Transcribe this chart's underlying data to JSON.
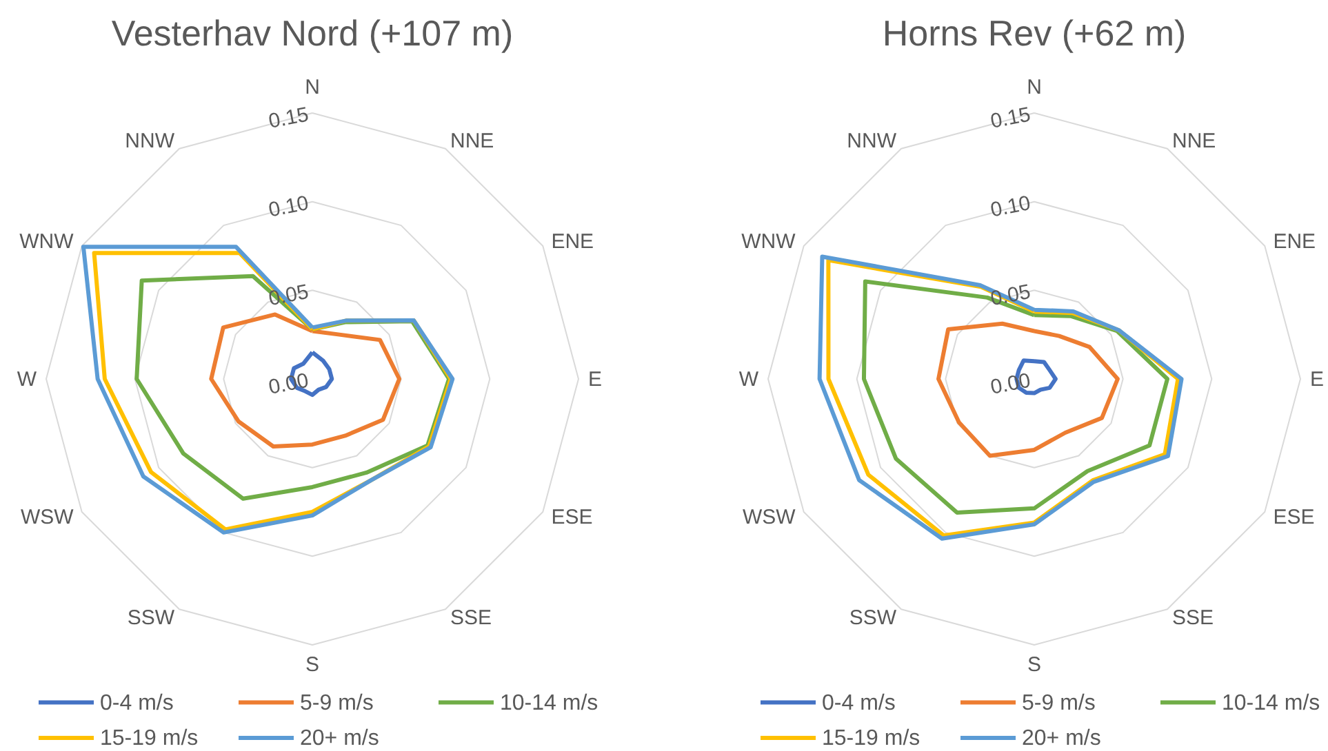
{
  "chart_data": [
    {
      "type": "radar",
      "title": "Vesterhav Nord (+107 m)",
      "categories": [
        "N",
        "NNE",
        "ENE",
        "E",
        "ESE",
        "SSE",
        "S",
        "SSW",
        "WSW",
        "W",
        "WNW",
        "NNW"
      ],
      "series": [
        {
          "name": "0-4 m/s",
          "color": "#4472c4",
          "values": [
            0.015,
            0.012,
            0.011,
            0.011,
            0.009,
            0.007,
            0.009,
            0.008,
            0.01,
            0.012,
            0.012,
            0.01
          ]
        },
        {
          "name": "5-9 m/s",
          "color": "#ed7d31",
          "values": [
            0.027,
            0.029,
            0.044,
            0.049,
            0.046,
            0.037,
            0.037,
            0.044,
            0.048,
            0.057,
            0.058,
            0.042
          ]
        },
        {
          "name": "10-14 m/s",
          "color": "#70ad47",
          "values": [
            0.028,
            0.037,
            0.065,
            0.077,
            0.075,
            0.061,
            0.061,
            0.078,
            0.084,
            0.099,
            0.111,
            0.067
          ]
        },
        {
          "name": "15-19 m/s",
          "color": "#ffc000",
          "values": [
            0.028,
            0.038,
            0.066,
            0.078,
            0.076,
            0.066,
            0.075,
            0.098,
            0.105,
            0.117,
            0.142,
            0.082
          ]
        },
        {
          "name": "20+ m/s",
          "color": "#5b9bd5",
          "values": [
            0.029,
            0.038,
            0.066,
            0.079,
            0.077,
            0.066,
            0.077,
            0.1,
            0.11,
            0.121,
            0.149,
            0.086
          ]
        }
      ],
      "ylim": [
        0,
        0.15
      ],
      "yticks": [
        {
          "value": 0,
          "label": "0.00"
        },
        {
          "value": 0.05,
          "label": "0.05"
        },
        {
          "value": 0.1,
          "label": "0.10"
        },
        {
          "value": 0.15,
          "label": "0.15"
        }
      ],
      "grid": true,
      "legend": "bottom"
    },
    {
      "type": "radar",
      "title": "Horns Rev (+62 m)",
      "categories": [
        "N",
        "NNE",
        "ENE",
        "E",
        "ESE",
        "SSE",
        "S",
        "SSW",
        "WSW",
        "W",
        "WNW",
        "NNW"
      ],
      "series": [
        {
          "name": "0-4 m/s",
          "color": "#4472c4",
          "values": [
            0.01,
            0.011,
            0.01,
            0.012,
            0.01,
            0.007,
            0.008,
            0.009,
            0.01,
            0.01,
            0.01,
            0.012
          ]
        },
        {
          "name": "5-9 m/s",
          "color": "#ed7d31",
          "values": [
            0.027,
            0.028,
            0.036,
            0.047,
            0.044,
            0.035,
            0.04,
            0.05,
            0.049,
            0.054,
            0.056,
            0.036
          ]
        },
        {
          "name": "10-14 m/s",
          "color": "#70ad47",
          "values": [
            0.036,
            0.041,
            0.054,
            0.075,
            0.075,
            0.06,
            0.073,
            0.087,
            0.09,
            0.096,
            0.11,
            0.053
          ]
        },
        {
          "name": "15-19 m/s",
          "color": "#ffc000",
          "values": [
            0.038,
            0.043,
            0.055,
            0.081,
            0.085,
            0.066,
            0.081,
            0.102,
            0.108,
            0.116,
            0.134,
            0.06
          ]
        },
        {
          "name": "20+ m/s",
          "color": "#5b9bd5",
          "values": [
            0.039,
            0.044,
            0.055,
            0.083,
            0.087,
            0.067,
            0.082,
            0.104,
            0.114,
            0.121,
            0.138,
            0.061
          ]
        }
      ],
      "ylim": [
        0,
        0.15
      ],
      "yticks": [
        {
          "value": 0,
          "label": "0.00"
        },
        {
          "value": 0.05,
          "label": "0.05"
        },
        {
          "value": 0.1,
          "label": "0.10"
        },
        {
          "value": 0.15,
          "label": "0.15"
        }
      ],
      "grid": true,
      "legend": "bottom"
    }
  ]
}
